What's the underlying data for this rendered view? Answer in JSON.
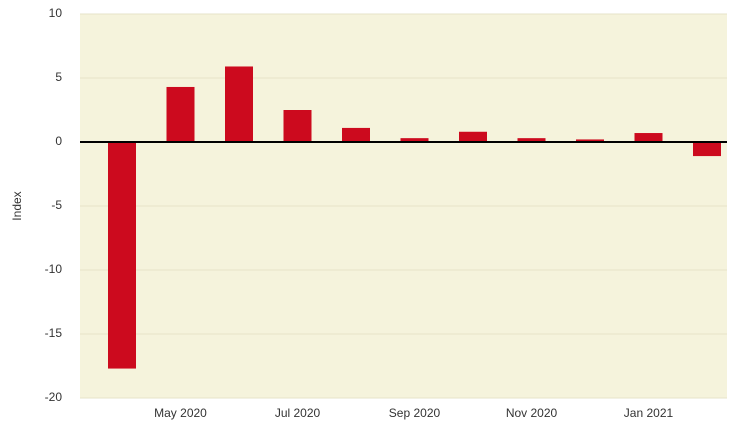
{
  "chart_data": {
    "type": "bar",
    "y_label": "Index",
    "categories": [
      null,
      "May 2020",
      null,
      "Jul 2020",
      null,
      "Sep 2020",
      null,
      "Nov 2020",
      null,
      "Jan 2021",
      null
    ],
    "values": [
      -17.7,
      4.3,
      5.9,
      2.5,
      1.1,
      0.3,
      0.8,
      0.3,
      0.2,
      0.7,
      -1.1
    ],
    "color": "#cc0a1e",
    "background": "#f5f3dc",
    "ylim": [
      -20,
      10
    ],
    "yticks": [
      -20,
      -15,
      -10,
      -5,
      0,
      5,
      10
    ],
    "grid": true
  }
}
